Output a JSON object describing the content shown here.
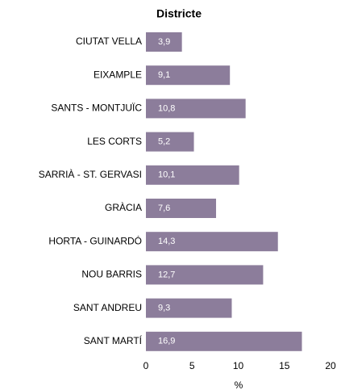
{
  "chart_data": {
    "type": "bar",
    "orientation": "horizontal",
    "title": "Districte",
    "categories": [
      "CIUTAT VELLA",
      "EIXAMPLE",
      "SANTS - MONTJUÏC",
      "LES CORTS",
      "SARRIÀ - ST. GERVASI",
      "GRÀCIA",
      "HORTA - GUINARDÓ",
      "NOU BARRIS",
      "SANT ANDREU",
      "SANT MARTÍ"
    ],
    "values": [
      3.9,
      9.1,
      10.8,
      5.2,
      10.1,
      7.6,
      14.3,
      12.7,
      9.3,
      16.9
    ],
    "value_labels": [
      "3,9",
      "9,1",
      "10,8",
      "5,2",
      "10,1",
      "7,6",
      "14,3",
      "12,7",
      "9,3",
      "16,9"
    ],
    "color": "#8c7d9b",
    "xlabel": "%",
    "xlim": [
      0,
      20
    ],
    "xticks": [
      0,
      5,
      10,
      15,
      20
    ],
    "grid": false
  }
}
